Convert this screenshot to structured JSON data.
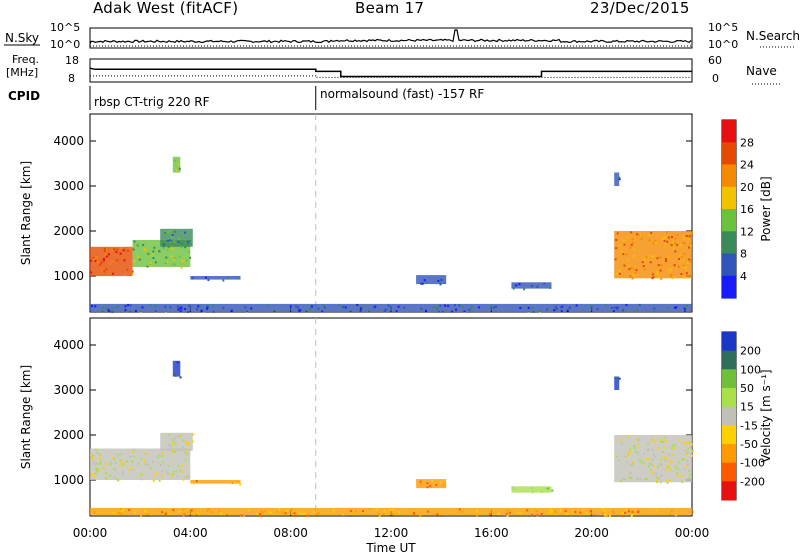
{
  "header": {
    "station": "Adak West (fitACF)",
    "beam": "Beam 17",
    "date": "23/Dec/2015"
  },
  "top_panels": {
    "nsky_label": "N.Sky",
    "nsearch_label": "N.Search",
    "nsky_ticks": [
      "10^5",
      "10^0"
    ],
    "nsky_right_ticks": [
      "10^5",
      "10^0"
    ],
    "freq_label_1": "Freq.",
    "freq_label_2": "[MHz]",
    "freq_ticks": [
      "18",
      "8"
    ],
    "nave_label": "Nave",
    "nave_ticks": [
      "60",
      "0"
    ],
    "cpid_label": "CPID",
    "cpid_segments": [
      {
        "name": "rbsp CT-trig 220 RF",
        "start": "00:00",
        "end": "09:00"
      },
      {
        "name": "normalsound (fast) -157 RF",
        "start": "09:00",
        "end": "24:00"
      }
    ],
    "freq_series": [
      {
        "t": 0.0,
        "f": 14.0
      },
      {
        "t": 0.2,
        "f": 13.5
      },
      {
        "t": 9.0,
        "f": 13.5
      },
      {
        "t": 9.0,
        "f": 12.6
      },
      {
        "t": 10.0,
        "f": 12.6
      },
      {
        "t": 10.0,
        "f": 10.4
      },
      {
        "t": 18.0,
        "f": 10.4
      },
      {
        "t": 18.0,
        "f": 12.6
      },
      {
        "t": 24.0,
        "f": 12.6
      }
    ],
    "nave_series": [
      {
        "t": 0.0,
        "n": 16
      },
      {
        "t": 9.0,
        "n": 16
      },
      {
        "t": 9.0,
        "n": 12
      },
      {
        "t": 24.0,
        "n": 12
      }
    ]
  },
  "chart_data": [
    {
      "type": "heatmap",
      "panel": "power",
      "ylabel": "Slant Range [km]",
      "xlim": [
        0,
        24
      ],
      "ylim": [
        200,
        4600
      ],
      "yticks": [
        1000,
        2000,
        3000,
        4000
      ],
      "colorbar_label": "Power [dB]",
      "colorbar_ticks": [
        "4",
        "8",
        "12",
        "16",
        "20",
        "24",
        "28"
      ],
      "colors": [
        "#1a1aff",
        "#2f55b8",
        "#3a8a5a",
        "#6cc23c",
        "#f2c200",
        "#f58a00",
        "#e64a00",
        "#e61010"
      ],
      "echo_regions": [
        {
          "t0": 0.0,
          "t1": 1.7,
          "r0": 1000,
          "r1": 1650,
          "level": 6
        },
        {
          "t0": 1.7,
          "t1": 4.0,
          "r0": 1200,
          "r1": 1800,
          "level": 3
        },
        {
          "t0": 2.8,
          "t1": 4.1,
          "r0": 1650,
          "r1": 2050,
          "level": 2
        },
        {
          "t0": 3.3,
          "t1": 3.6,
          "r0": 3300,
          "r1": 3650,
          "level": 3
        },
        {
          "t0": 4.0,
          "t1": 6.0,
          "r0": 920,
          "r1": 1000,
          "level": 1
        },
        {
          "t0": 13.0,
          "t1": 14.2,
          "r0": 820,
          "r1": 1020,
          "level": 1
        },
        {
          "t0": 16.8,
          "t1": 18.4,
          "r0": 720,
          "r1": 860,
          "level": 1
        },
        {
          "t0": 20.9,
          "t1": 24.0,
          "r0": 950,
          "r1": 2000,
          "level": 5
        },
        {
          "t0": 20.9,
          "t1": 21.1,
          "r0": 3000,
          "r1": 3300,
          "level": 1
        },
        {
          "t0": 0.0,
          "t1": 24.0,
          "r0": 220,
          "r1": 380,
          "level": 1
        }
      ]
    },
    {
      "type": "heatmap",
      "panel": "velocity",
      "ylabel": "Slant Range [km]",
      "xlabel": "Time UT",
      "xlim": [
        0,
        24
      ],
      "ylim": [
        200,
        4600
      ],
      "yticks": [
        1000,
        2000,
        3000,
        4000
      ],
      "xticks": [
        "00:00",
        "04:00",
        "08:00",
        "12:00",
        "16:00",
        "20:00",
        "00:00"
      ],
      "colorbar_label": "Velocity [m s⁻¹]",
      "colorbar_ticks": [
        "200",
        "100",
        "50",
        "15",
        "-15",
        "-50",
        "-100",
        "-200"
      ],
      "colors": [
        "#1a38c8",
        "#2f6e5c",
        "#6fbf3a",
        "#a8e04a",
        "#c0c0b8",
        "#ffd000",
        "#ff9a00",
        "#ff5a00",
        "#e61010"
      ],
      "echo_regions": [
        {
          "t0": 0.0,
          "t1": 4.0,
          "r0": 1000,
          "r1": 1700,
          "level": 4
        },
        {
          "t0": 2.8,
          "t1": 4.1,
          "r0": 1650,
          "r1": 2050,
          "level": 4
        },
        {
          "t0": 3.3,
          "t1": 3.6,
          "r0": 3300,
          "r1": 3650,
          "level": 0
        },
        {
          "t0": 4.0,
          "t1": 6.0,
          "r0": 920,
          "r1": 1000,
          "level": 6
        },
        {
          "t0": 13.0,
          "t1": 14.2,
          "r0": 820,
          "r1": 1020,
          "level": 6
        },
        {
          "t0": 16.8,
          "t1": 18.4,
          "r0": 720,
          "r1": 860,
          "level": 3
        },
        {
          "t0": 20.9,
          "t1": 24.0,
          "r0": 950,
          "r1": 2000,
          "level": 4
        },
        {
          "t0": 20.9,
          "t1": 21.1,
          "r0": 3000,
          "r1": 3300,
          "level": 0
        },
        {
          "t0": 0.0,
          "t1": 24.0,
          "r0": 220,
          "r1": 380,
          "level": 6
        }
      ]
    }
  ]
}
